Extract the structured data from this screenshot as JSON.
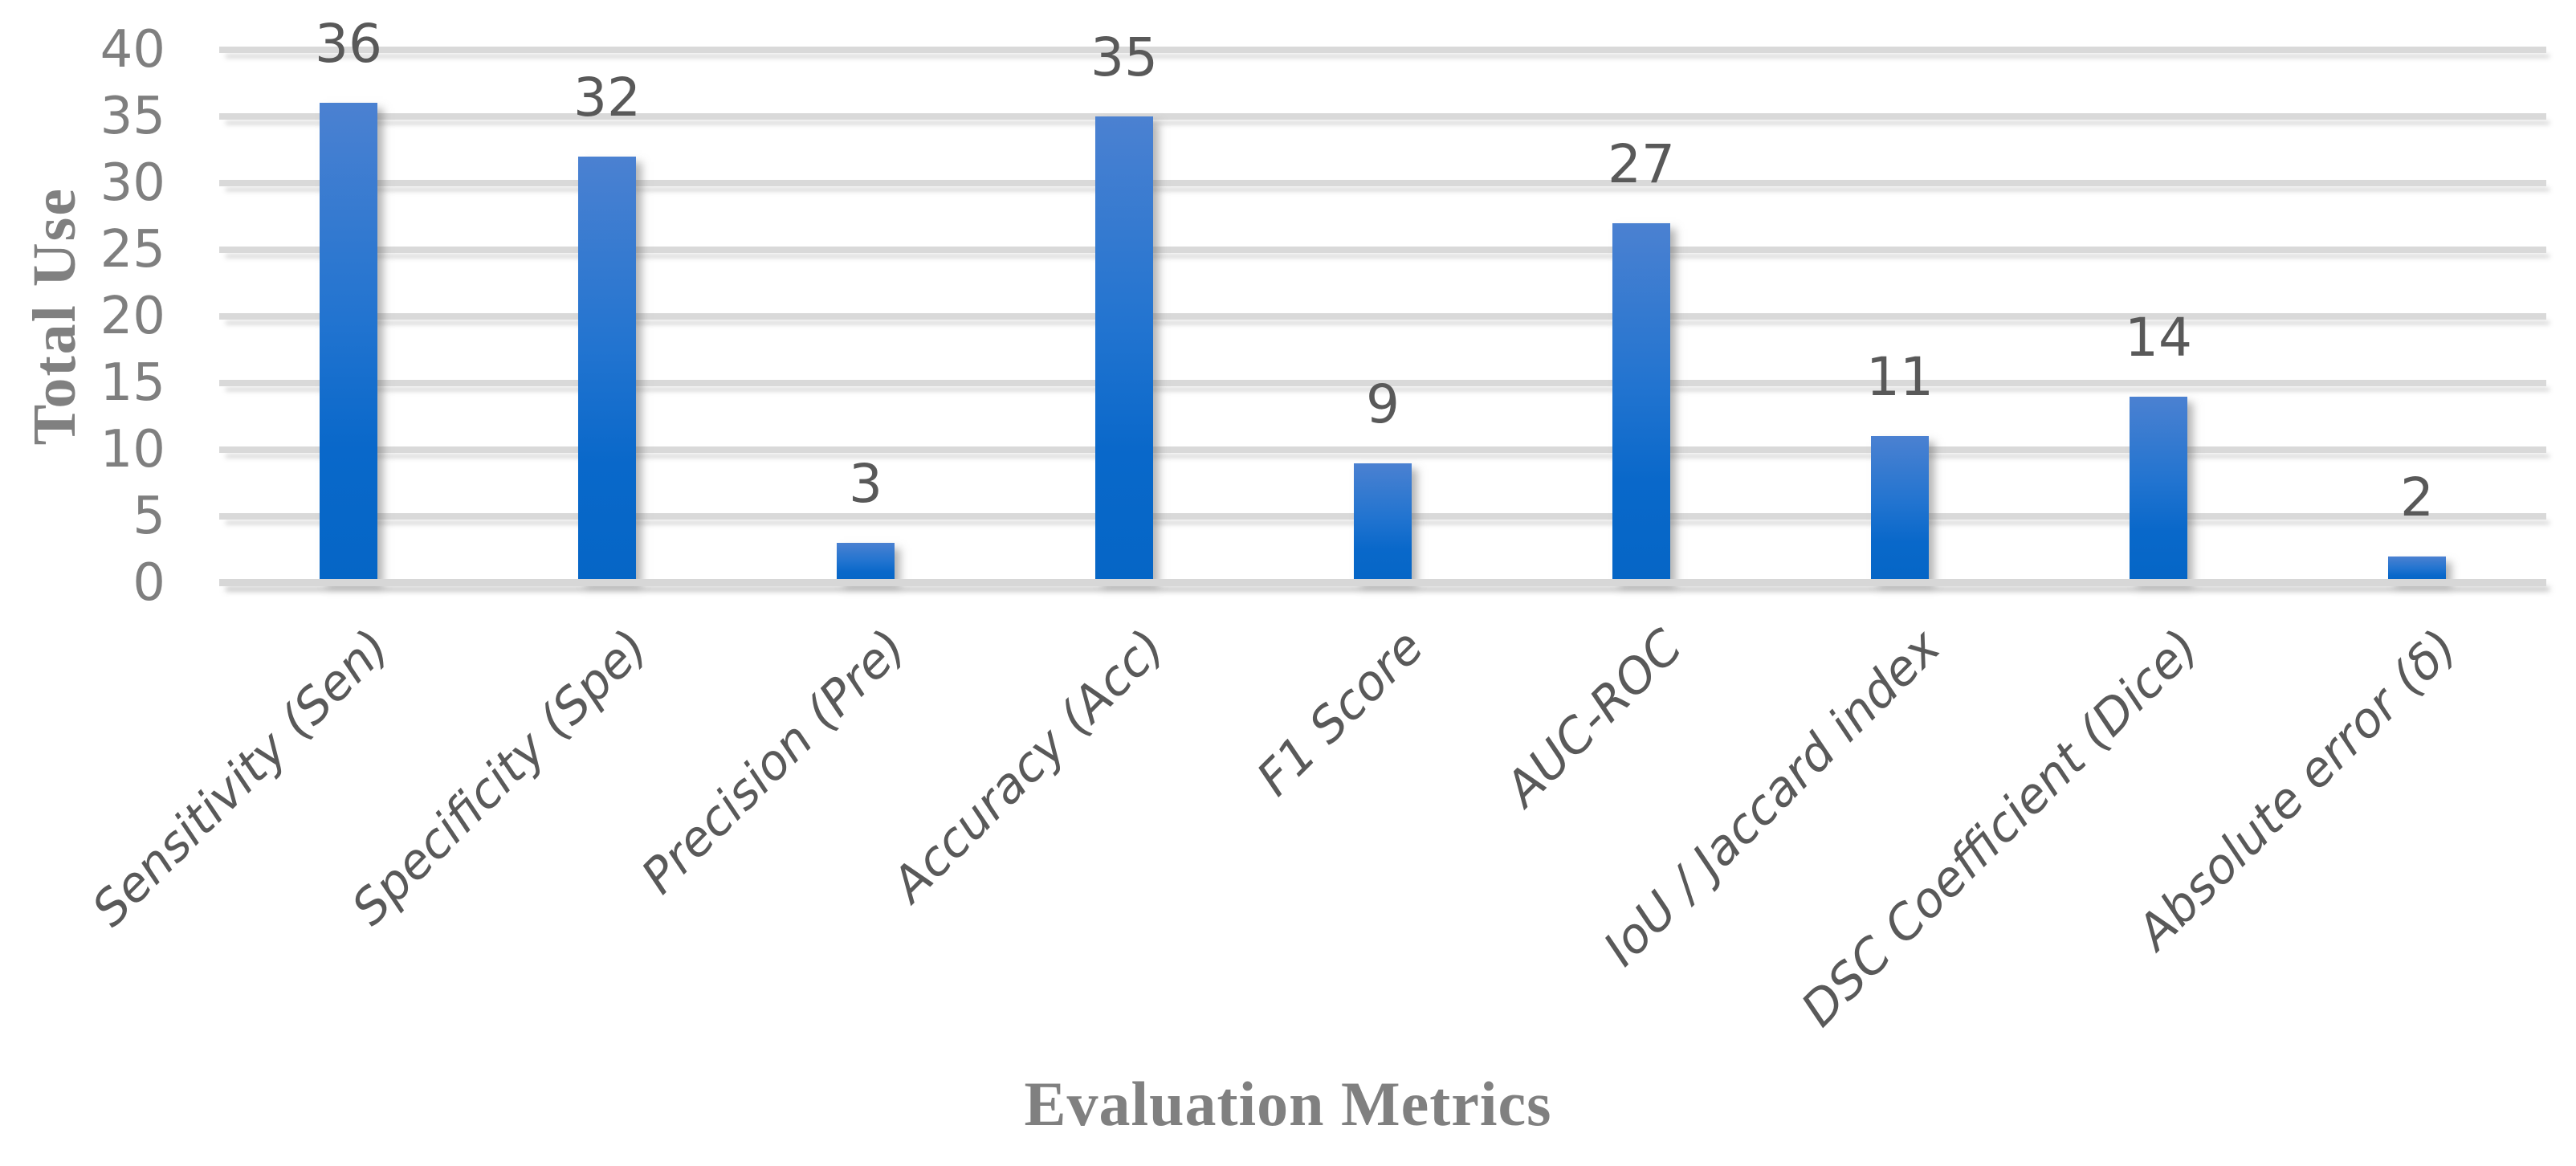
{
  "chart_data": {
    "type": "bar",
    "title": "",
    "xlabel": "Evaluation Metrics",
    "ylabel": "Total Use",
    "categories": [
      "Sensitivity (Sen)",
      "Specificity (Spe)",
      "Precision (Pre)",
      "Accuracy (Acc)",
      "F1 Score",
      "AUC-ROC",
      "IoU / Jaccard index",
      "DSC Coefficient (Dice)",
      "Absolute error (δ)"
    ],
    "values": [
      36,
      32,
      3,
      35,
      9,
      27,
      11,
      14,
      2
    ],
    "data_labels": [
      36,
      32,
      3,
      35,
      9,
      27,
      11,
      14,
      2
    ],
    "ylim": [
      0,
      40
    ],
    "yticks": [
      0,
      5,
      10,
      15,
      20,
      25,
      30,
      35,
      40
    ],
    "grid": true,
    "legend_position": "none",
    "category_label_rotation_deg": -45,
    "colors": {
      "bar_gradient_top": "#4b81d1",
      "bar_gradient_mid": "#2274d0",
      "bar_gradient_low": "#0968ca",
      "bar_gradient_bottom": "#0566c6",
      "gridline": "#d9d9d9",
      "axis_line": "#d7d7d7",
      "tick_label": "#7f7f7f",
      "value_label": "#595959",
      "category_label": "#595959",
      "axis_title": "#808080",
      "background": "#ffffff"
    }
  }
}
